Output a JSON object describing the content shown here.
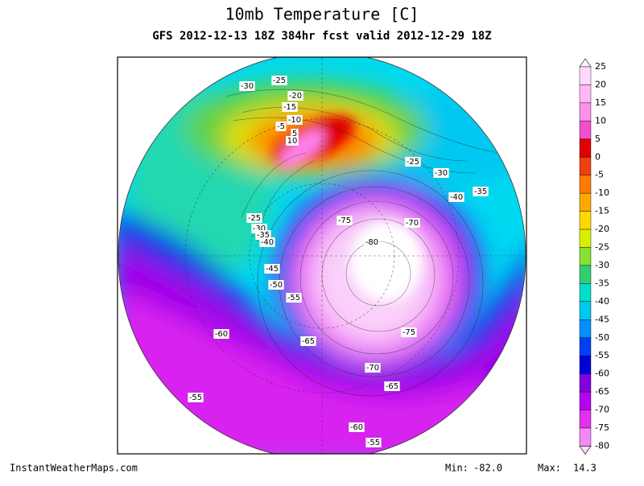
{
  "header": {
    "title": "10mb Temperature [C]",
    "subtitle": "GFS 2012-12-13 18Z 384hr fcst valid 2012-12-29 18Z"
  },
  "contour_labels": [
    -30,
    -25,
    -20,
    -15,
    -10,
    -5,
    5,
    10,
    -25,
    -30,
    -35,
    -40,
    -75,
    -70,
    -80,
    -25,
    -30,
    -35,
    -40,
    -45,
    -50,
    -55,
    -60,
    -65,
    -75,
    -70,
    -65,
    -55,
    -60,
    -55
  ],
  "colorbar": {
    "labels": [
      25,
      20,
      15,
      10,
      5,
      0,
      -5,
      -10,
      -15,
      -20,
      -25,
      -30,
      -35,
      -40,
      -45,
      -50,
      -55,
      -60,
      -65,
      -70,
      -75,
      -80
    ],
    "colors": [
      "#fff0ff",
      "#ffd8fc",
      "#ffb8f4",
      "#ff90ec",
      "#f050d0",
      "#e00000",
      "#f04010",
      "#ff7a00",
      "#ffa800",
      "#ffd800",
      "#d8f000",
      "#88e030",
      "#30d070",
      "#00e0c8",
      "#00c8f0",
      "#0090ff",
      "#0040f0",
      "#0000d8",
      "#8000e0",
      "#b800f0",
      "#e030f0",
      "#f488f4",
      "#fcd8fc"
    ]
  },
  "footer": {
    "site": "InstantWeatherMaps.com",
    "min_label": "Min:",
    "min": "-82.0",
    "max_label": "Max:",
    "max": "14.3"
  }
}
